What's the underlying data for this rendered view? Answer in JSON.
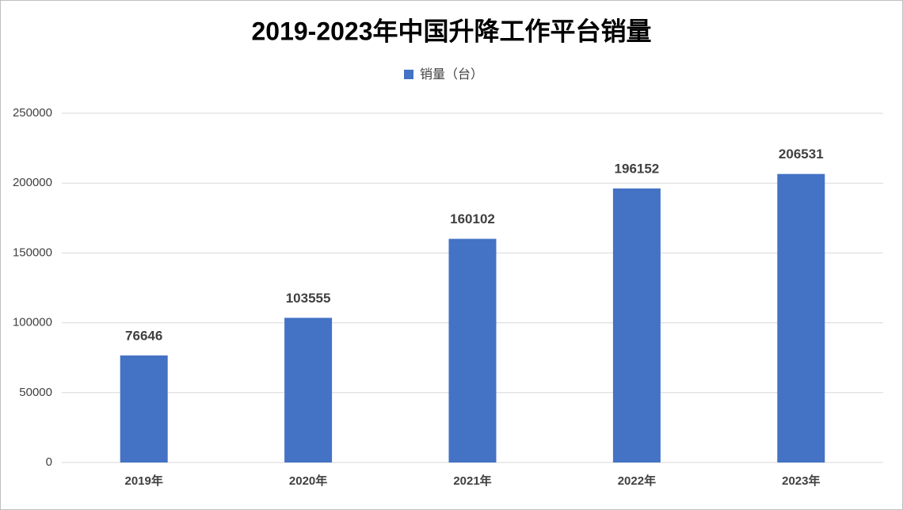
{
  "chart_data": {
    "type": "bar",
    "title": "2019-2023年中国升降工作平台销量",
    "categories": [
      "2019年",
      "2020年",
      "2021年",
      "2022年",
      "2023年"
    ],
    "series": [
      {
        "name": "销量（台）",
        "color": "#4472c4",
        "values": [
          76646,
          103555,
          160102,
          196152,
          206531
        ]
      }
    ],
    "ylim": [
      0,
      250000
    ],
    "yticks": [
      0,
      50000,
      100000,
      150000,
      200000,
      250000
    ],
    "grid": true,
    "legend": "top",
    "data_labels": true
  }
}
